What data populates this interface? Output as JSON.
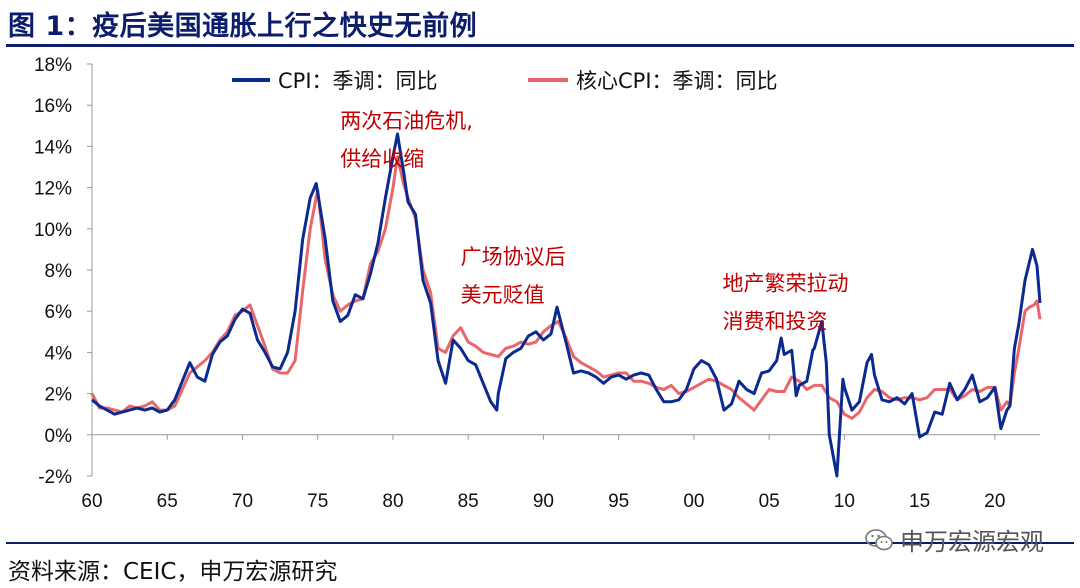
{
  "title": "图 1：疫后美国通胀上行之快史无前例",
  "source": "资料来源：CEIC，申万宏源研究",
  "watermark": "申万宏源宏观",
  "colors": {
    "cpi": "#0b2a8f",
    "core": "#e8676b",
    "title": "#0b1d6b",
    "annotation": "#c00000"
  },
  "chart_data": {
    "type": "line",
    "title": "",
    "xlabel": "",
    "ylabel": "",
    "xlim": [
      1960,
      2023
    ],
    "ylim": [
      -2,
      18
    ],
    "x_ticks": [
      {
        "v": 1960,
        "label": "60"
      },
      {
        "v": 1965,
        "label": "65"
      },
      {
        "v": 1970,
        "label": "70"
      },
      {
        "v": 1975,
        "label": "75"
      },
      {
        "v": 1980,
        "label": "80"
      },
      {
        "v": 1985,
        "label": "85"
      },
      {
        "v": 1990,
        "label": "90"
      },
      {
        "v": 1995,
        "label": "95"
      },
      {
        "v": 2000,
        "label": "00"
      },
      {
        "v": 2005,
        "label": "05"
      },
      {
        "v": 2010,
        "label": "10"
      },
      {
        "v": 2015,
        "label": "15"
      },
      {
        "v": 2020,
        "label": "20"
      }
    ],
    "y_ticks": [
      {
        "v": -2,
        "label": "-2%"
      },
      {
        "v": 0,
        "label": "0%"
      },
      {
        "v": 2,
        "label": "2%"
      },
      {
        "v": 4,
        "label": "4%"
      },
      {
        "v": 6,
        "label": "6%"
      },
      {
        "v": 8,
        "label": "8%"
      },
      {
        "v": 10,
        "label": "10%"
      },
      {
        "v": 12,
        "label": "12%"
      },
      {
        "v": 14,
        "label": "14%"
      },
      {
        "v": 16,
        "label": "16%"
      },
      {
        "v": 18,
        "label": "18%"
      }
    ],
    "legend_position": "top",
    "series": [
      {
        "name": "CPI：季调：同比",
        "color": "#0b2a8f",
        "points": [
          [
            1960,
            1.7
          ],
          [
            1960.5,
            1.4
          ],
          [
            1961,
            1.2
          ],
          [
            1961.5,
            1.0
          ],
          [
            1962,
            1.1
          ],
          [
            1962.5,
            1.2
          ],
          [
            1963,
            1.3
          ],
          [
            1963.5,
            1.2
          ],
          [
            1964,
            1.3
          ],
          [
            1964.5,
            1.1
          ],
          [
            1965,
            1.2
          ],
          [
            1965.5,
            1.7
          ],
          [
            1966,
            2.6
          ],
          [
            1966.5,
            3.5
          ],
          [
            1967,
            2.8
          ],
          [
            1967.5,
            2.6
          ],
          [
            1968,
            3.9
          ],
          [
            1968.5,
            4.5
          ],
          [
            1969,
            4.8
          ],
          [
            1969.5,
            5.6
          ],
          [
            1970,
            6.1
          ],
          [
            1970.5,
            5.9
          ],
          [
            1971,
            4.6
          ],
          [
            1971.5,
            4.0
          ],
          [
            1972,
            3.3
          ],
          [
            1972.5,
            3.2
          ],
          [
            1973,
            4.0
          ],
          [
            1973.5,
            6.0
          ],
          [
            1974,
            9.5
          ],
          [
            1974.5,
            11.5
          ],
          [
            1974.9,
            12.2
          ],
          [
            1975.5,
            9.5
          ],
          [
            1976,
            6.5
          ],
          [
            1976.5,
            5.5
          ],
          [
            1977,
            5.8
          ],
          [
            1977.5,
            6.8
          ],
          [
            1978,
            6.6
          ],
          [
            1978.5,
            7.8
          ],
          [
            1979,
            9.3
          ],
          [
            1979.5,
            11.5
          ],
          [
            1980,
            13.5
          ],
          [
            1980.3,
            14.6
          ],
          [
            1980.7,
            12.8
          ],
          [
            1981,
            11.3
          ],
          [
            1981.5,
            10.7
          ],
          [
            1982,
            7.5
          ],
          [
            1982.5,
            6.4
          ],
          [
            1983,
            3.6
          ],
          [
            1983.5,
            2.5
          ],
          [
            1984,
            4.6
          ],
          [
            1984.5,
            4.2
          ],
          [
            1985,
            3.6
          ],
          [
            1985.5,
            3.4
          ],
          [
            1986,
            2.5
          ],
          [
            1986.5,
            1.6
          ],
          [
            1986.9,
            1.2
          ],
          [
            1987,
            2.0
          ],
          [
            1987.5,
            3.7
          ],
          [
            1988,
            4.0
          ],
          [
            1988.5,
            4.2
          ],
          [
            1989,
            4.8
          ],
          [
            1989.5,
            5.0
          ],
          [
            1990,
            4.6
          ],
          [
            1990.5,
            4.9
          ],
          [
            1990.9,
            6.2
          ],
          [
            1991.5,
            4.5
          ],
          [
            1992,
            3.0
          ],
          [
            1992.5,
            3.1
          ],
          [
            1993,
            3.0
          ],
          [
            1993.5,
            2.8
          ],
          [
            1994,
            2.5
          ],
          [
            1994.5,
            2.8
          ],
          [
            1995,
            2.9
          ],
          [
            1995.5,
            2.7
          ],
          [
            1996,
            2.9
          ],
          [
            1996.5,
            3.0
          ],
          [
            1997,
            2.9
          ],
          [
            1997.5,
            2.2
          ],
          [
            1998,
            1.6
          ],
          [
            1998.5,
            1.6
          ],
          [
            1999,
            1.7
          ],
          [
            1999.5,
            2.2
          ],
          [
            2000,
            3.2
          ],
          [
            2000.5,
            3.6
          ],
          [
            2001,
            3.4
          ],
          [
            2001.5,
            2.7
          ],
          [
            2002,
            1.2
          ],
          [
            2002.5,
            1.5
          ],
          [
            2003,
            2.6
          ],
          [
            2003.5,
            2.2
          ],
          [
            2004,
            2.0
          ],
          [
            2004.5,
            3.0
          ],
          [
            2005,
            3.1
          ],
          [
            2005.5,
            3.6
          ],
          [
            2005.8,
            4.7
          ],
          [
            2006,
            3.9
          ],
          [
            2006.5,
            4.1
          ],
          [
            2006.8,
            1.9
          ],
          [
            2007,
            2.4
          ],
          [
            2007.5,
            2.6
          ],
          [
            2007.9,
            4.1
          ],
          [
            2008,
            4.2
          ],
          [
            2008.5,
            5.5
          ],
          [
            2008.8,
            3.5
          ],
          [
            2009,
            0.0
          ],
          [
            2009.5,
            -2.0
          ],
          [
            2009.9,
            2.7
          ],
          [
            2010,
            2.3
          ],
          [
            2010.5,
            1.2
          ],
          [
            2011,
            1.6
          ],
          [
            2011.5,
            3.5
          ],
          [
            2011.8,
            3.9
          ],
          [
            2012,
            2.9
          ],
          [
            2012.5,
            1.7
          ],
          [
            2013,
            1.6
          ],
          [
            2013.5,
            1.8
          ],
          [
            2014,
            1.5
          ],
          [
            2014.5,
            2.0
          ],
          [
            2015,
            -0.1
          ],
          [
            2015.5,
            0.1
          ],
          [
            2016,
            1.1
          ],
          [
            2016.5,
            1.0
          ],
          [
            2017,
            2.5
          ],
          [
            2017.5,
            1.7
          ],
          [
            2018,
            2.2
          ],
          [
            2018.5,
            2.9
          ],
          [
            2019,
            1.6
          ],
          [
            2019.5,
            1.8
          ],
          [
            2020,
            2.3
          ],
          [
            2020.4,
            0.3
          ],
          [
            2020.8,
            1.2
          ],
          [
            2021,
            1.4
          ],
          [
            2021.3,
            4.2
          ],
          [
            2021.6,
            5.4
          ],
          [
            2022,
            7.5
          ],
          [
            2022.5,
            9.0
          ],
          [
            2022.8,
            8.2
          ],
          [
            2023,
            6.4
          ]
        ]
      },
      {
        "name": "核心CPI：季调：同比",
        "color": "#e8676b",
        "points": [
          [
            1960,
            2.0
          ],
          [
            1960.5,
            1.3
          ],
          [
            1961,
            1.3
          ],
          [
            1961.5,
            1.2
          ],
          [
            1962,
            1.1
          ],
          [
            1962.5,
            1.4
          ],
          [
            1963,
            1.3
          ],
          [
            1963.5,
            1.4
          ],
          [
            1964,
            1.6
          ],
          [
            1964.5,
            1.2
          ],
          [
            1965,
            1.2
          ],
          [
            1965.5,
            1.4
          ],
          [
            1966,
            2.2
          ],
          [
            1966.5,
            3.0
          ],
          [
            1967,
            3.3
          ],
          [
            1967.5,
            3.6
          ],
          [
            1968,
            4.0
          ],
          [
            1968.5,
            4.6
          ],
          [
            1969,
            5.0
          ],
          [
            1969.5,
            5.8
          ],
          [
            1970,
            6.0
          ],
          [
            1970.5,
            6.3
          ],
          [
            1971,
            5.3
          ],
          [
            1971.5,
            4.3
          ],
          [
            1972,
            3.2
          ],
          [
            1972.5,
            3.0
          ],
          [
            1973,
            3.0
          ],
          [
            1973.5,
            3.6
          ],
          [
            1974,
            7.0
          ],
          [
            1974.5,
            10.0
          ],
          [
            1975,
            11.9
          ],
          [
            1975.5,
            8.5
          ],
          [
            1976,
            6.8
          ],
          [
            1976.5,
            6.0
          ],
          [
            1977,
            6.3
          ],
          [
            1977.5,
            6.5
          ],
          [
            1978,
            6.6
          ],
          [
            1978.5,
            8.3
          ],
          [
            1979,
            8.9
          ],
          [
            1979.5,
            10.0
          ],
          [
            1980,
            12.0
          ],
          [
            1980.3,
            13.5
          ],
          [
            1980.7,
            12.2
          ],
          [
            1981,
            11.5
          ],
          [
            1981.5,
            10.5
          ],
          [
            1982,
            8.0
          ],
          [
            1982.5,
            6.9
          ],
          [
            1983,
            4.2
          ],
          [
            1983.5,
            4.0
          ],
          [
            1984,
            4.8
          ],
          [
            1984.5,
            5.2
          ],
          [
            1985,
            4.5
          ],
          [
            1985.5,
            4.3
          ],
          [
            1986,
            4.0
          ],
          [
            1986.5,
            3.9
          ],
          [
            1987,
            3.8
          ],
          [
            1987.5,
            4.2
          ],
          [
            1988,
            4.3
          ],
          [
            1988.5,
            4.5
          ],
          [
            1989,
            4.4
          ],
          [
            1989.5,
            4.5
          ],
          [
            1990,
            5.0
          ],
          [
            1990.5,
            5.3
          ],
          [
            1991,
            5.5
          ],
          [
            1991.5,
            4.7
          ],
          [
            1992,
            3.8
          ],
          [
            1992.5,
            3.5
          ],
          [
            1993,
            3.3
          ],
          [
            1993.5,
            3.1
          ],
          [
            1994,
            2.8
          ],
          [
            1994.5,
            2.9
          ],
          [
            1995,
            3.0
          ],
          [
            1995.5,
            3.0
          ],
          [
            1996,
            2.6
          ],
          [
            1996.5,
            2.6
          ],
          [
            1997,
            2.5
          ],
          [
            1997.5,
            2.3
          ],
          [
            1998,
            2.2
          ],
          [
            1998.5,
            2.4
          ],
          [
            1999,
            2.0
          ],
          [
            1999.5,
            2.1
          ],
          [
            2000,
            2.3
          ],
          [
            2000.5,
            2.5
          ],
          [
            2001,
            2.7
          ],
          [
            2001.5,
            2.6
          ],
          [
            2002,
            2.4
          ],
          [
            2002.5,
            2.2
          ],
          [
            2003,
            1.8
          ],
          [
            2003.5,
            1.5
          ],
          [
            2004,
            1.2
          ],
          [
            2004.5,
            1.7
          ],
          [
            2005,
            2.2
          ],
          [
            2005.5,
            2.1
          ],
          [
            2006,
            2.1
          ],
          [
            2006.5,
            2.8
          ],
          [
            2007,
            2.6
          ],
          [
            2007.5,
            2.2
          ],
          [
            2008,
            2.4
          ],
          [
            2008.5,
            2.4
          ],
          [
            2009,
            1.8
          ],
          [
            2009.5,
            1.6
          ],
          [
            2010,
            1.0
          ],
          [
            2010.5,
            0.8
          ],
          [
            2011,
            1.1
          ],
          [
            2011.5,
            1.8
          ],
          [
            2012,
            2.2
          ],
          [
            2012.5,
            2.1
          ],
          [
            2013,
            1.8
          ],
          [
            2013.5,
            1.7
          ],
          [
            2014,
            1.8
          ],
          [
            2014.5,
            1.8
          ],
          [
            2015,
            1.7
          ],
          [
            2015.5,
            1.8
          ],
          [
            2016,
            2.2
          ],
          [
            2016.5,
            2.2
          ],
          [
            2017,
            2.2
          ],
          [
            2017.5,
            1.7
          ],
          [
            2018,
            1.9
          ],
          [
            2018.5,
            2.2
          ],
          [
            2019,
            2.1
          ],
          [
            2019.5,
            2.3
          ],
          [
            2020,
            2.3
          ],
          [
            2020.4,
            1.2
          ],
          [
            2020.8,
            1.6
          ],
          [
            2021,
            1.4
          ],
          [
            2021.3,
            3.0
          ],
          [
            2021.6,
            4.2
          ],
          [
            2022,
            6.0
          ],
          [
            2022.3,
            6.2
          ],
          [
            2022.6,
            6.3
          ],
          [
            2022.8,
            6.5
          ],
          [
            2023,
            5.6
          ]
        ]
      }
    ],
    "annotations": [
      {
        "lines": [
          "两次石油危机,",
          "供给收缩"
        ],
        "x": 1976.5,
        "y": 14.9
      },
      {
        "lines": [
          "广场协议后",
          "美元贬值"
        ],
        "x": 1984.5,
        "y": 8.3
      },
      {
        "lines": [
          "地产繁荣拉动",
          "消费和投资"
        ],
        "x": 2001.9,
        "y": 7.0
      }
    ]
  }
}
